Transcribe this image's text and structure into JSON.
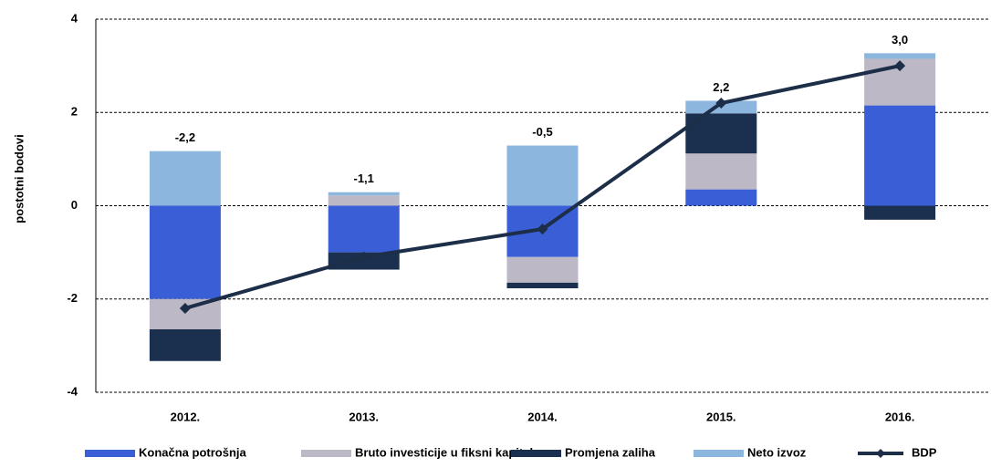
{
  "chart_data": {
    "type": "bar",
    "y_label": "postotni bodovi",
    "categories": [
      "2012.",
      "2013.",
      "2014.",
      "2015.",
      "2016."
    ],
    "series": [
      {
        "name": "Konačna potrošnja",
        "color": "#3a5ed6",
        "values": [
          -2.0,
          -1.0,
          -1.1,
          0.35,
          2.15
        ]
      },
      {
        "name": "Bruto investicije u fiksni kapital",
        "color": "#bdb8c6",
        "values": [
          -0.65,
          0.22,
          -0.55,
          0.77,
          1.0
        ]
      },
      {
        "name": "Promjena zaliha",
        "color": "#1b304f",
        "values": [
          -0.68,
          -0.37,
          -0.12,
          0.86,
          -0.3
        ]
      },
      {
        "name": "Neto izvoz",
        "color": "#8db6de",
        "values": [
          1.17,
          0.07,
          1.29,
          0.27,
          0.12
        ]
      },
      {
        "name": "BDP",
        "type": "line",
        "color": "#1c2e48",
        "values": [
          -2.2,
          -1.1,
          -0.5,
          2.2,
          3.0
        ],
        "value_labels": [
          "-2,2",
          "-1,1",
          "-0,5",
          "2,2",
          "3,0"
        ]
      }
    ],
    "ylim": [
      -4,
      4
    ],
    "yticks": [
      -4,
      -2,
      0,
      2,
      4
    ],
    "grid": true,
    "legend": "bottom"
  }
}
